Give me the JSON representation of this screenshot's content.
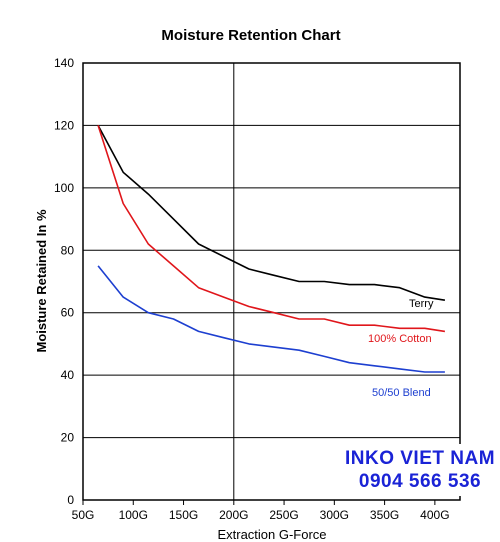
{
  "chart_data": {
    "type": "line",
    "title": "Moisture Retention Chart",
    "xlabel": "Extraction G-Force",
    "ylabel": "Moisture Retained In %",
    "x_ticks": [
      "50G",
      "100G",
      "150G",
      "200G",
      "250G",
      "300G",
      "350G",
      "400G"
    ],
    "x_tick_values": [
      50,
      100,
      150,
      200,
      250,
      300,
      350,
      400
    ],
    "xlim": [
      50,
      425
    ],
    "ylim": [
      0,
      140
    ],
    "y_ticks": [
      0,
      20,
      40,
      60,
      80,
      100,
      120,
      140
    ],
    "grid": {
      "horizontal": true,
      "vertical_at": [
        200
      ]
    },
    "series": [
      {
        "name": "Terry",
        "color": "#000000",
        "x": [
          65,
          90,
          115,
          140,
          165,
          190,
          215,
          240,
          265,
          290,
          315,
          340,
          365,
          390,
          410
        ],
        "y": [
          120,
          105,
          98,
          90,
          82,
          78,
          74,
          72,
          70,
          70,
          69,
          69,
          68,
          65,
          64
        ]
      },
      {
        "name": "100% Cotton",
        "color": "#e0161b",
        "x": [
          65,
          90,
          115,
          140,
          165,
          190,
          215,
          240,
          265,
          290,
          315,
          340,
          365,
          390,
          410
        ],
        "y": [
          120,
          95,
          82,
          75,
          68,
          65,
          62,
          60,
          58,
          58,
          56,
          56,
          55,
          55,
          54
        ]
      },
      {
        "name": "50/50 Blend",
        "color": "#1d3fd0",
        "x": [
          65,
          90,
          115,
          140,
          165,
          190,
          215,
          240,
          265,
          290,
          315,
          340,
          365,
          390,
          410
        ],
        "y": [
          75,
          65,
          60,
          58,
          54,
          52,
          50,
          49,
          48,
          46,
          44,
          43,
          42,
          41,
          41
        ]
      }
    ]
  },
  "watermark": {
    "line1": "INKO VIET NAM",
    "line2": "0904 566 536"
  }
}
